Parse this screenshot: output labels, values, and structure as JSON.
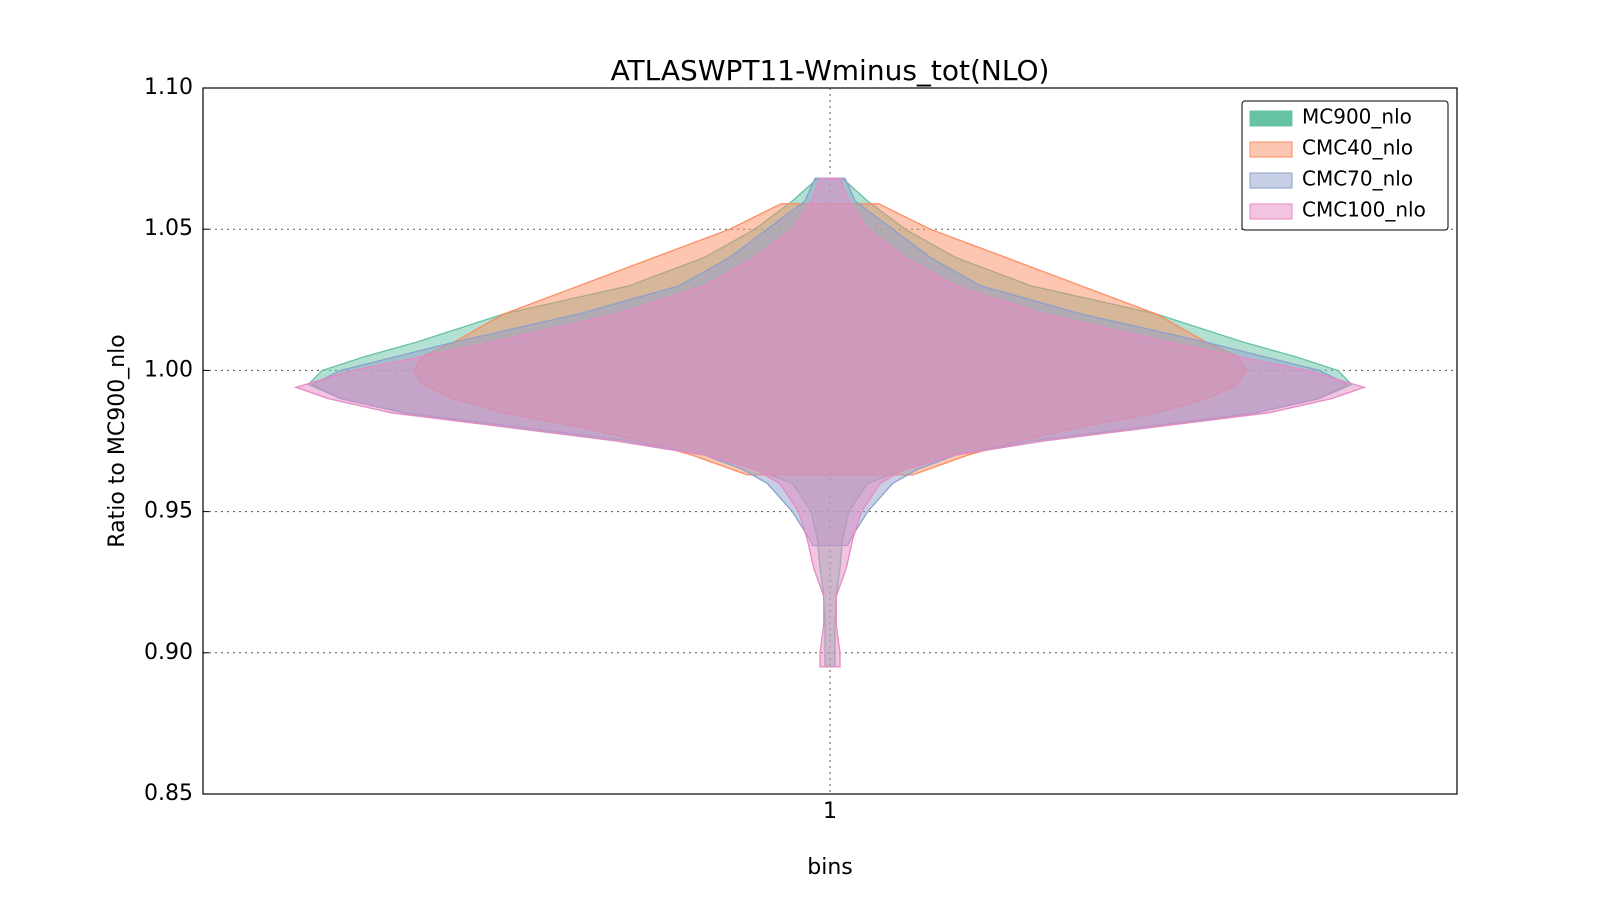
{
  "chart_data": {
    "type": "violin",
    "title": "ATLASWPT11-Wminus_tot(NLO)",
    "xlabel": "bins",
    "ylabel": "Ratio to MC900_nlo",
    "categories": [
      "1"
    ],
    "xlim": [
      0.5,
      1.5
    ],
    "ylim": [
      0.85,
      1.1
    ],
    "yticks": [
      {
        "value": 0.85,
        "label": "0.85"
      },
      {
        "value": 0.9,
        "label": "0.90"
      },
      {
        "value": 0.95,
        "label": "0.95"
      },
      {
        "value": 1.0,
        "label": "1.00"
      },
      {
        "value": 1.05,
        "label": "1.05"
      },
      {
        "value": 1.1,
        "label": "1.10"
      }
    ],
    "grid": true,
    "legend": "upper right",
    "series": [
      {
        "name": "MC900_nlo",
        "color": "#66c2a5",
        "y": [
          1.068,
          1.06,
          1.05,
          1.04,
          1.03,
          1.02,
          1.01,
          1.005,
          1.0,
          0.995,
          0.99,
          0.985,
          0.98,
          0.975,
          0.97,
          0.965,
          0.96,
          0.95,
          0.94,
          0.93,
          0.92,
          0.91,
          0.9,
          0.895
        ],
        "half_width": [
          0.01,
          0.03,
          0.06,
          0.1,
          0.16,
          0.26,
          0.33,
          0.37,
          0.405,
          0.416,
          0.39,
          0.34,
          0.26,
          0.17,
          0.1,
          0.06,
          0.03,
          0.015,
          0.01,
          0.008,
          0.005,
          0.004,
          0.004,
          0.004
        ]
      },
      {
        "name": "CMC40_nlo",
        "color": "#fc8d62",
        "y": [
          1.059,
          1.05,
          1.04,
          1.03,
          1.02,
          1.01,
          1.005,
          1.0,
          0.995,
          0.99,
          0.985,
          0.98,
          0.975,
          0.97,
          0.963
        ],
        "half_width": [
          0.039,
          0.08,
          0.14,
          0.2,
          0.26,
          0.3,
          0.325,
          0.332,
          0.325,
          0.3,
          0.26,
          0.2,
          0.15,
          0.11,
          0.066
        ]
      },
      {
        "name": "CMC70_nlo",
        "color": "#8da0cb",
        "y": [
          1.068,
          1.06,
          1.05,
          1.04,
          1.03,
          1.02,
          1.01,
          1.0,
          0.995,
          0.99,
          0.985,
          0.98,
          0.975,
          0.97,
          0.965,
          0.96,
          0.95,
          0.94,
          0.938
        ],
        "half_width": [
          0.012,
          0.02,
          0.05,
          0.08,
          0.12,
          0.2,
          0.3,
          0.39,
          0.413,
          0.39,
          0.34,
          0.25,
          0.16,
          0.1,
          0.07,
          0.05,
          0.03,
          0.016,
          0.014
        ]
      },
      {
        "name": "CMC100_nlo",
        "color": "#e78ac3",
        "y": [
          1.068,
          1.06,
          1.05,
          1.04,
          1.03,
          1.02,
          1.01,
          1.0,
          0.994,
          0.99,
          0.985,
          0.98,
          0.975,
          0.97,
          0.965,
          0.96,
          0.95,
          0.94,
          0.93,
          0.92,
          0.91,
          0.9,
          0.895
        ],
        "half_width": [
          0.008,
          0.015,
          0.03,
          0.06,
          0.1,
          0.17,
          0.27,
          0.38,
          0.426,
          0.4,
          0.35,
          0.26,
          0.17,
          0.1,
          0.06,
          0.04,
          0.025,
          0.018,
          0.013,
          0.005,
          0.005,
          0.008,
          0.008
        ]
      }
    ]
  }
}
